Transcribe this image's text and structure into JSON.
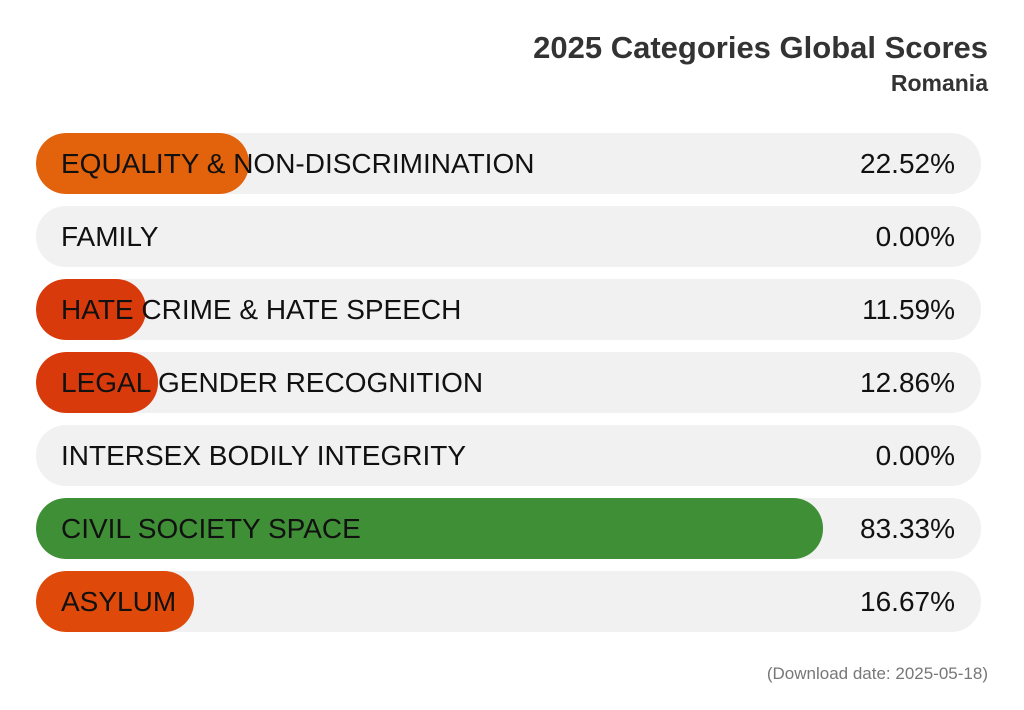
{
  "chart_data": {
    "type": "bar",
    "orientation": "horizontal",
    "title": "2025 Categories Global Scores",
    "subtitle": "Romania",
    "xlim": [
      0,
      100
    ],
    "grid": false,
    "categories": [
      "EQUALITY & NON-DISCRIMINATION",
      "FAMILY",
      "HATE CRIME & HATE SPEECH",
      "LEGAL GENDER RECOGNITION",
      "INTERSEX BODILY INTEGRITY",
      "CIVIL SOCIETY SPACE",
      "ASYLUM"
    ],
    "values": [
      22.52,
      0.0,
      11.59,
      12.86,
      0.0,
      83.33,
      16.67
    ],
    "value_labels": [
      "22.52%",
      "0.00%",
      "11.59%",
      "12.86%",
      "0.00%",
      "83.33%",
      "16.67%"
    ],
    "colors": [
      "#e3620c",
      "#e3620c",
      "#d93a0c",
      "#d93a0c",
      "#d93a0c",
      "#3f8f36",
      "#df4a0b"
    ]
  },
  "footer": {
    "download_date": "(Download date: 2025-05-18)"
  }
}
